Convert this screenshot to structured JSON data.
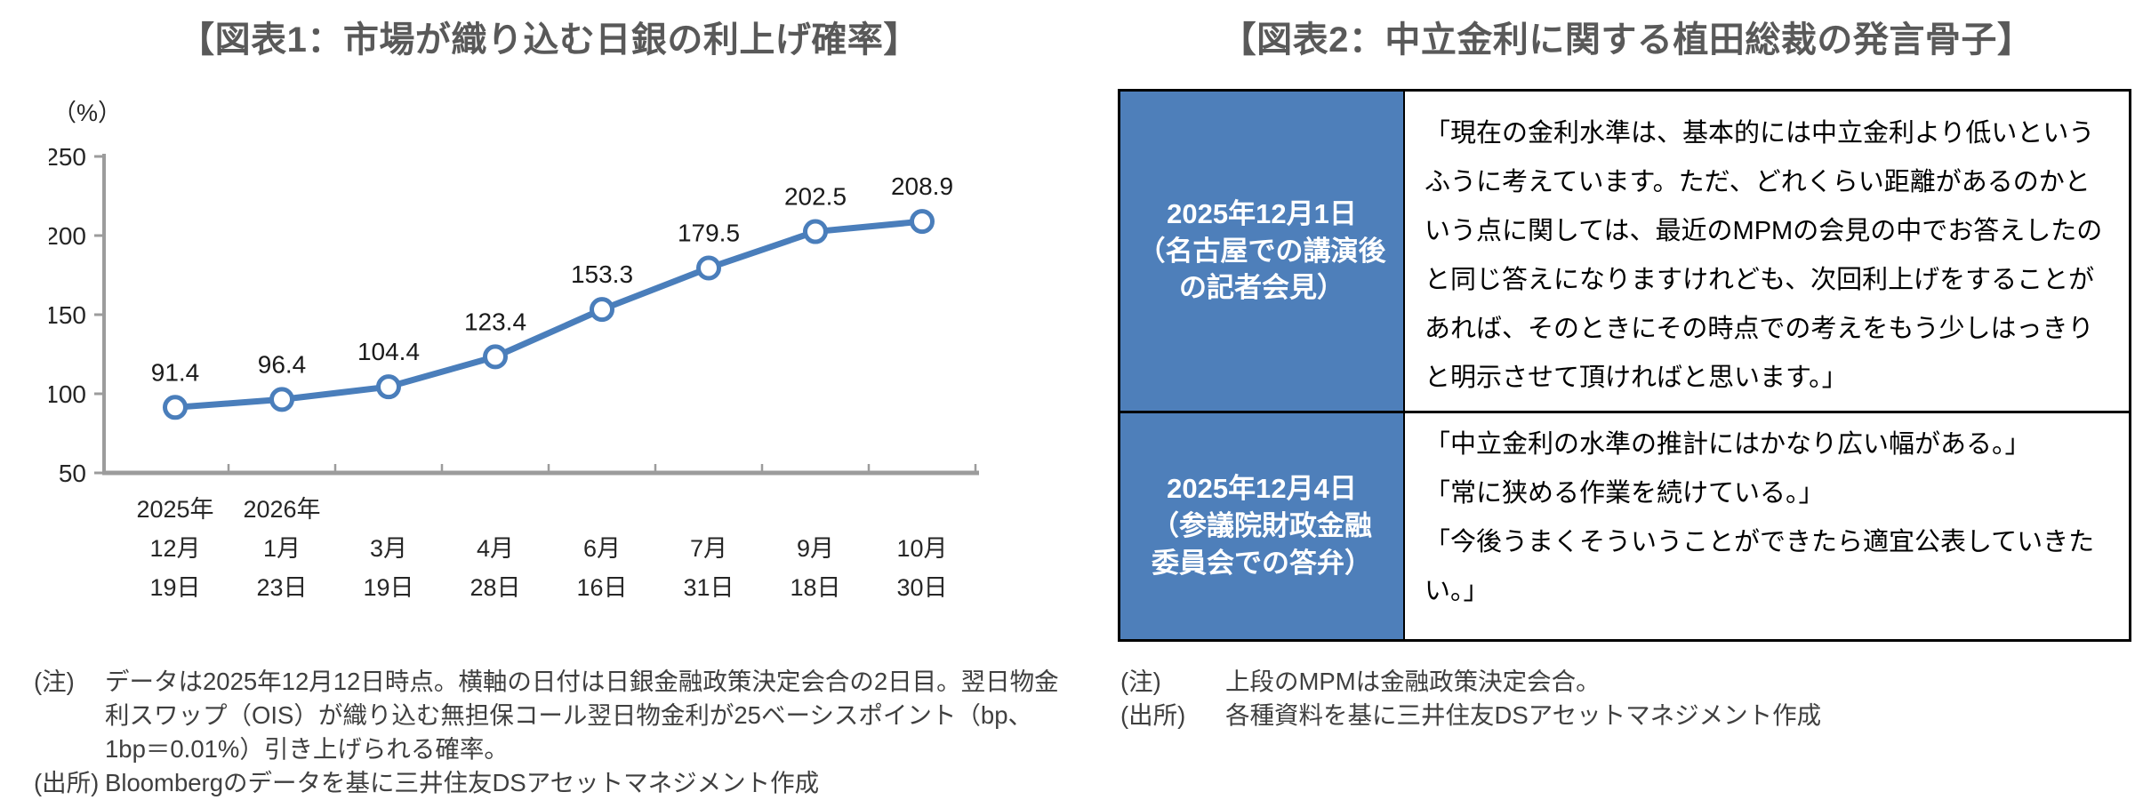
{
  "colors": {
    "line_blue": "#4A7EBB",
    "table_header_blue": "#4E7FBA",
    "title_gray": "#595959",
    "axis_gray": "#9C9C9C",
    "label_black": "#1a1a1a"
  },
  "figure1": {
    "title": "【図表1：市場が織り込む日銀の利上げ確率】",
    "note_label": "(注)",
    "note_text": "データは2025年12月12日時点。横軸の日付は日銀金融政策決定会合の2日目。翌日物金利スワップ（OIS）が織り込む無担保コール翌日物金利が25ベーシスポイント（bp、1bp＝0.01%）引き上げられる確率。",
    "source_label": "(出所)",
    "source_text": "Bloombergのデータを基に三井住友DSアセットマネジメント作成"
  },
  "chart_data": {
    "type": "line",
    "title": "市場が織り込む日銀の利上げ確率",
    "unit_label": "（%）",
    "values": [
      91.4,
      96.4,
      104.4,
      123.4,
      153.3,
      179.5,
      202.5,
      208.9
    ],
    "categories_month": [
      "12月",
      "1月",
      "3月",
      "4月",
      "6月",
      "7月",
      "9月",
      "10月"
    ],
    "categories_day": [
      "19日",
      "23日",
      "19日",
      "28日",
      "16日",
      "31日",
      "18日",
      "30日"
    ],
    "year_labels": [
      {
        "index": 0,
        "label": "2025年"
      },
      {
        "index": 1,
        "label": "2026年"
      }
    ],
    "ylim": [
      50,
      250
    ],
    "yticks": [
      50,
      100,
      150,
      200,
      250
    ],
    "grid": false,
    "legend": "none",
    "line_color": "#4A7EBB",
    "marker": "open-circle",
    "data_labels": true
  },
  "figure2": {
    "title": "【図表2：中立金利に関する植田総裁の発言骨子】",
    "table": {
      "rows": [
        {
          "date_header": "2025年12月1日\n（名古屋での講演後\nの記者会見）",
          "quotes": [
            "「現在の金利水準は、基本的には中立金利より低いというふうに考えています。ただ、どれくらい距離があるのかという点に関しては、最近のMPMの会見の中でお答えしたのと同じ答えになりますけれども、次回利上げをすることがあれば、そのときにその時点での考えをもう少しはっきりと明示させて頂ければと思います。」"
          ]
        },
        {
          "date_header": "2025年12月4日\n（参議院財政金融\n委員会での答弁）",
          "quotes": [
            "「中立金利の水準の推計にはかなり広い幅がある。」",
            "「常に狭める作業を続けている。」",
            "「今後うまくそういうことができたら適宜公表していきたい。」"
          ]
        }
      ]
    },
    "note_label": "(注)",
    "note_text": "上段のMPMは金融政策決定会合。",
    "source_label": "(出所)",
    "source_text": "各種資料を基に三井住友DSアセットマネジメント作成"
  }
}
